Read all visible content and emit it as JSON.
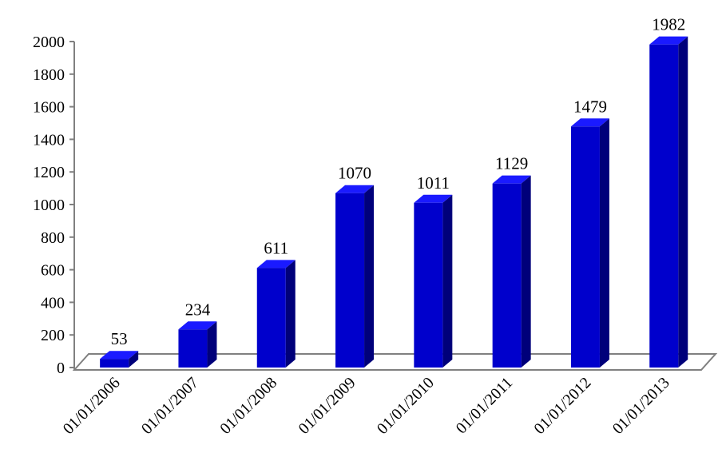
{
  "chart_data": {
    "type": "bar",
    "style": "3d-column",
    "categories": [
      "01/01/2006",
      "01/01/2007",
      "01/01/2008",
      "01/01/2009",
      "01/01/2010",
      "01/01/2011",
      "01/01/2012",
      "01/01/2013"
    ],
    "values": [
      53,
      234,
      611,
      1070,
      1011,
      1129,
      1479,
      1982
    ],
    "data_labels": [
      "53",
      "234",
      "611",
      "1070",
      "1011",
      "1129",
      "1479",
      "1982"
    ],
    "y_ticks": [
      "0",
      "200",
      "400",
      "600",
      "800",
      "1000",
      "1200",
      "1400",
      "1600",
      "1800",
      "2000"
    ],
    "ylim": [
      0,
      2000
    ],
    "grid": false,
    "legend": "none",
    "colors": {
      "bar_front": "#0000cc",
      "bar_side": "#00007a",
      "bar_top": "#1a1aff",
      "floor": "#ffffff",
      "axis": "#808080"
    }
  }
}
